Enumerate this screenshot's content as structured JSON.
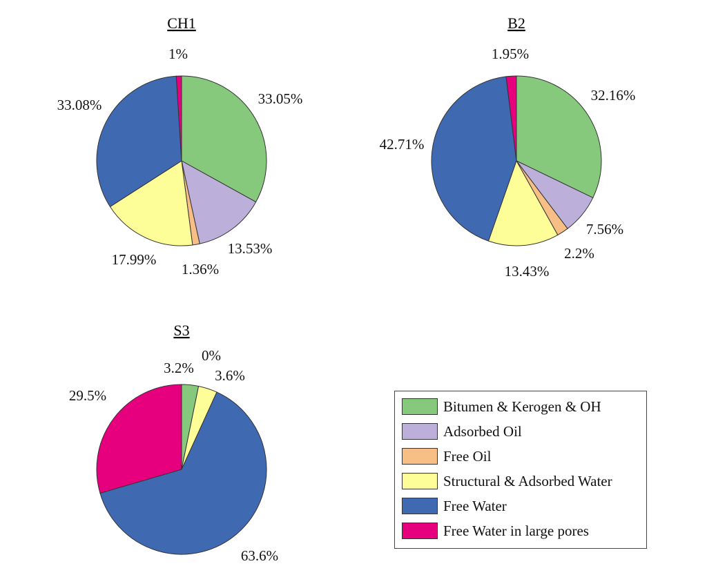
{
  "colors": {
    "bitumen": "#86c97d",
    "adsorbed_oil": "#bcafd9",
    "free_oil": "#f7bf86",
    "structural_water": "#fefe99",
    "free_water": "#3f69b1",
    "free_water_large": "#e7007d"
  },
  "legend": [
    {
      "label": "Bitumen & Kerogen & OH",
      "color": "#86c97d"
    },
    {
      "label": "Adsorbed Oil",
      "color": "#bcafd9"
    },
    {
      "label": "Free Oil",
      "color": "#f7bf86"
    },
    {
      "label": "Structural & Adsorbed Water",
      "color": "#fefe99"
    },
    {
      "label": "Free Water",
      "color": "#3f69b1"
    },
    {
      "label": "Free Water in large pores",
      "color": "#e7007d"
    }
  ],
  "chart_data": [
    {
      "type": "pie",
      "title": "CH1",
      "categories": [
        "Bitumen & Kerogen & OH",
        "Adsorbed Oil",
        "Free Oil",
        "Structural & Adsorbed Water",
        "Free Water",
        "Free Water in large pores"
      ],
      "values": [
        33.05,
        13.53,
        1.36,
        17.99,
        33.08,
        1.0
      ],
      "labels": [
        "33.05%",
        "13.53%",
        "1.36%",
        "17.99%",
        "33.08%",
        "1%"
      ]
    },
    {
      "type": "pie",
      "title": "B2",
      "categories": [
        "Bitumen & Kerogen & OH",
        "Adsorbed Oil",
        "Free Oil",
        "Structural & Adsorbed Water",
        "Free Water",
        "Free Water in large pores"
      ],
      "values": [
        32.16,
        7.56,
        2.2,
        13.43,
        42.71,
        1.95
      ],
      "labels": [
        "32.16%",
        "7.56%",
        "2.2%",
        "13.43%",
        "42.71%",
        "1.95%"
      ]
    },
    {
      "type": "pie",
      "title": "S3",
      "categories": [
        "Bitumen & Kerogen & OH",
        "Adsorbed Oil",
        "Free Oil",
        "Structural & Adsorbed Water",
        "Free Water",
        "Free Water in large pores"
      ],
      "values": [
        3.2,
        0,
        0,
        3.6,
        63.6,
        29.5
      ],
      "labels": [
        "3.2%",
        "",
        "0%",
        "3.6%",
        "63.6%",
        "29.5%"
      ]
    }
  ]
}
